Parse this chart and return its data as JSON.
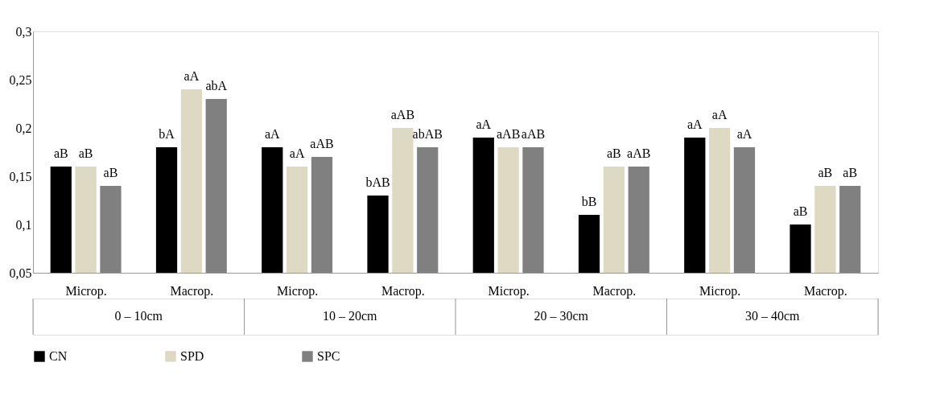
{
  "chart_data": {
    "type": "bar",
    "categories": [
      "Microp.",
      "Macrop.",
      "Microp.",
      "Macrop.",
      "Microp.",
      "Macrop.",
      "Microp.",
      "Macrop."
    ],
    "annotations": [
      "0 – 10cm",
      "10 – 20cm",
      "20 – 30cm",
      "30 – 40cm"
    ],
    "series": [
      {
        "name": "CN",
        "color": "#000000",
        "values": [
          0.16,
          0.18,
          0.18,
          0.13,
          0.19,
          0.11,
          0.19,
          0.1
        ],
        "value_labels": [
          "aB",
          "bA",
          "aA",
          "bAB",
          "aA",
          "bB",
          "aA",
          "aB"
        ]
      },
      {
        "name": "SPD",
        "color": "#ddd9c3",
        "values": [
          0.16,
          0.24,
          0.16,
          0.2,
          0.18,
          0.16,
          0.2,
          0.14
        ],
        "value_labels": [
          "aB",
          "aA",
          "aA",
          "aAB",
          "aAB",
          "aB",
          "aA",
          "aB"
        ]
      },
      {
        "name": "SPC",
        "color": "#808080",
        "values": [
          0.14,
          0.23,
          0.17,
          0.18,
          0.18,
          0.16,
          0.18,
          0.14
        ],
        "value_labels": [
          "aB",
          "abA",
          "aAB",
          "abAB",
          "aAB",
          "aAB",
          "aA",
          "aB"
        ]
      }
    ],
    "ylim": [
      0.05,
      0.3
    ],
    "yticks": [
      {
        "value": 0.05,
        "label": "0,05"
      },
      {
        "value": 0.1,
        "label": "0,1"
      },
      {
        "value": 0.15,
        "label": "0,15"
      },
      {
        "value": 0.2,
        "label": "0,2"
      },
      {
        "value": 0.25,
        "label": "0,25"
      },
      {
        "value": 0.3,
        "label": "0,3"
      }
    ],
    "grid": false,
    "legend": "bottom"
  }
}
